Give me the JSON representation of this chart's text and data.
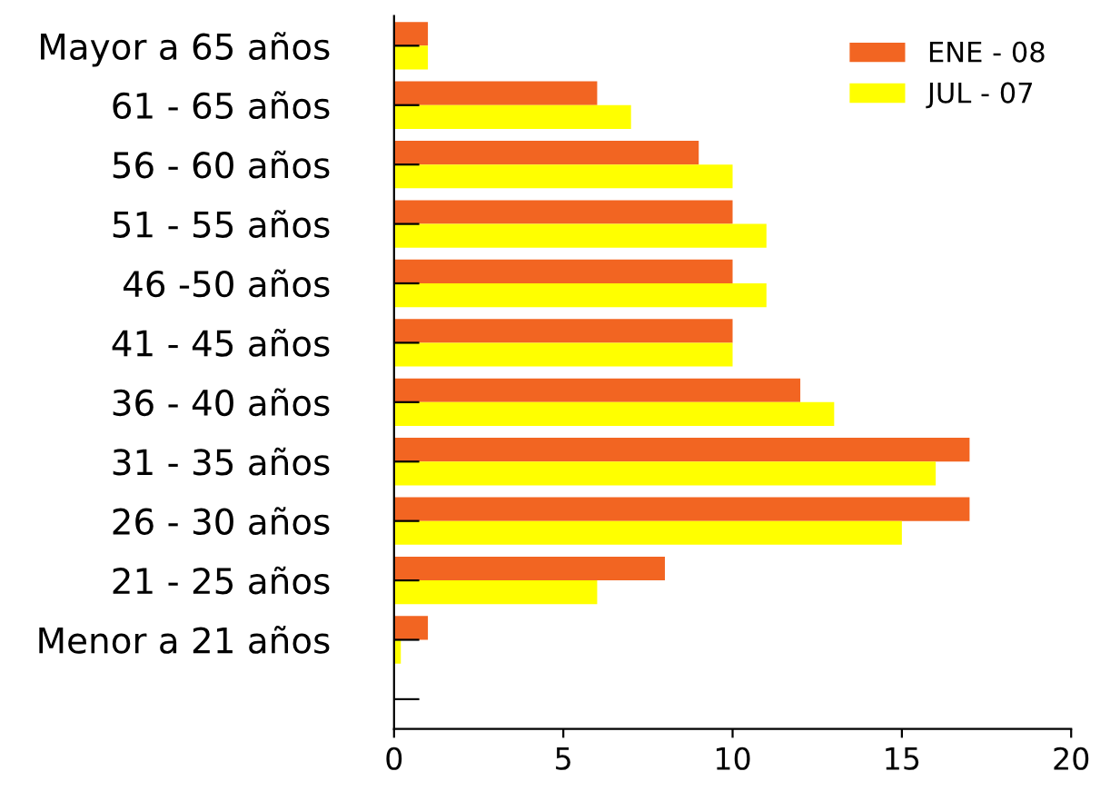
{
  "chart_data": {
    "type": "bar",
    "orientation": "horizontal",
    "categories": [
      "Mayor a 65 años",
      "61 - 65 años",
      "56 - 60 años",
      "51 - 55 años",
      "46 -50 años",
      "41 - 45 años",
      "36 - 40 años",
      "31 - 35 años",
      "26 - 30 años",
      "21 - 25 años",
      "Menor a 21 años",
      null
    ],
    "series": [
      {
        "name": "ENE - 08",
        "color": "#f26522",
        "values": [
          1,
          6,
          9,
          10,
          10,
          10,
          12,
          17,
          17,
          8,
          1,
          null
        ]
      },
      {
        "name": "JUL - 07",
        "color": "#ffff00",
        "values": [
          1,
          7,
          10,
          11,
          11,
          10,
          13,
          16,
          15,
          6,
          0.2,
          null
        ]
      }
    ],
    "xlim": [
      0,
      20
    ],
    "xticks": [
      0,
      5,
      10,
      15,
      20
    ],
    "grid": false,
    "legend": "top right"
  }
}
